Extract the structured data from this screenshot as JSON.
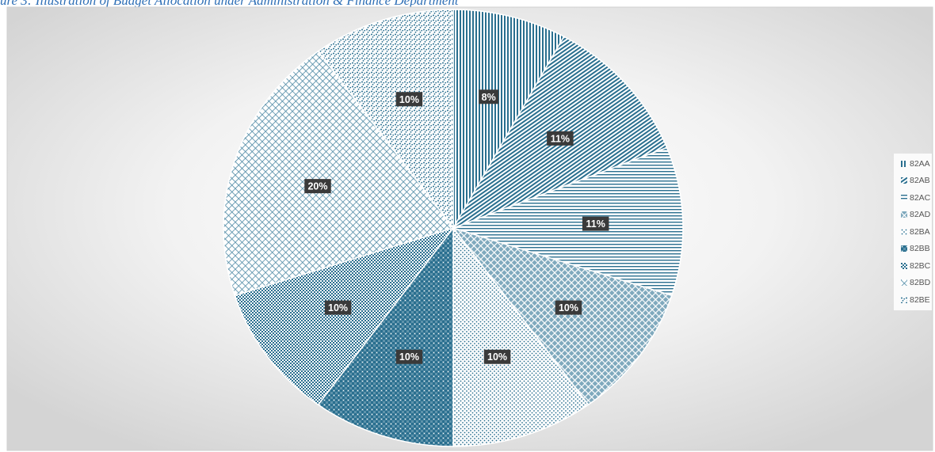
{
  "caption": "ure 3: Illustration of Budget Allocation under Administration & Finance Department",
  "chart_data": {
    "type": "pie",
    "title": "",
    "categories": [
      "82AA",
      "82AB",
      "82AC",
      "82AD",
      "82BA",
      "82BB",
      "82BC",
      "82BD",
      "82BE"
    ],
    "values": [
      8,
      11,
      11,
      10,
      10,
      10,
      10,
      20,
      10
    ],
    "data_labels": [
      "8%",
      "11%",
      "11%",
      "10%",
      "10%",
      "10%",
      "10%",
      "20%",
      "10%"
    ],
    "start_angle_deg": 0,
    "direction": "clockwise",
    "legend_position": "right",
    "colors": {
      "primary": "#2a6f8f",
      "label_bg": "#3a3a3a",
      "label_text": "#ffffff",
      "caption": "#2e6fb6"
    },
    "patterns": [
      "vertical-lines",
      "diagonal-lines",
      "horizontal-lines",
      "diamond-grid",
      "small-dots",
      "checker-large",
      "checker-small",
      "diagonal-cross",
      "scattered-dots"
    ]
  }
}
